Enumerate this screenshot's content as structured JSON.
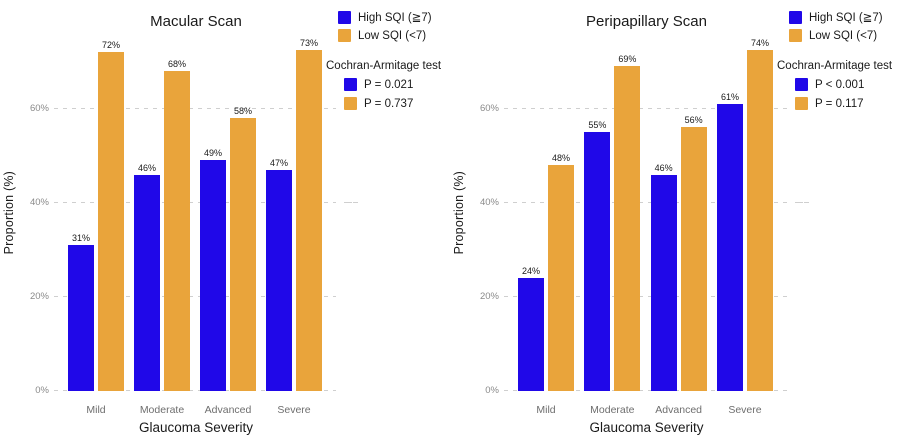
{
  "colors": {
    "high_sqi": "#2008E8",
    "low_sqi": "#E9A43B",
    "grid": "#CFCFCF",
    "y_tick_text": "#8A8A8A",
    "x_tick_text": "#6E6E6E",
    "text": "#1A1A1A"
  },
  "chart_data": [
    {
      "type": "bar",
      "title": "Macular Scan",
      "xlabel": "Glaucoma Severity",
      "ylabel": "Proportion (%)",
      "categories": [
        "Mild",
        "Moderate",
        "Advanced",
        "Severe"
      ],
      "series": [
        {
          "name": "High SQI (≧7)",
          "color": "#2008E8",
          "values": [
            31,
            46,
            49,
            47
          ]
        },
        {
          "name": "Low SQI (<7)",
          "color": "#E9A43B",
          "values": [
            72,
            68,
            58,
            73
          ]
        }
      ],
      "value_label_suffix": "%",
      "ylim": [
        0,
        75
      ],
      "yticks": [
        {
          "value": 0,
          "label": "0%"
        },
        {
          "value": 20,
          "label": "20%"
        },
        {
          "value": 40,
          "label": "40%"
        },
        {
          "value": 60,
          "label": "60%"
        }
      ],
      "grid": "horizontal dashed",
      "legend_position": "top-right",
      "cochran_armitage": {
        "title": "Cochran-Armitage test",
        "p_high": "P = 0.021",
        "p_low": "P = 0.737"
      }
    },
    {
      "type": "bar",
      "title": "Peripapillary Scan",
      "xlabel": "Glaucoma Severity",
      "ylabel": "Proportion (%)",
      "categories": [
        "Mild",
        "Moderate",
        "Advanced",
        "Severe"
      ],
      "series": [
        {
          "name": "High SQI (≧7)",
          "color": "#2008E8",
          "values": [
            24,
            55,
            46,
            61
          ]
        },
        {
          "name": "Low SQI (<7)",
          "color": "#E9A43B",
          "values": [
            48,
            69,
            56,
            74
          ]
        }
      ],
      "value_label_suffix": "%",
      "ylim": [
        0,
        75
      ],
      "yticks": [
        {
          "value": 0,
          "label": "0%"
        },
        {
          "value": 20,
          "label": "20%"
        },
        {
          "value": 40,
          "label": "40%"
        },
        {
          "value": 60,
          "label": "60%"
        }
      ],
      "grid": "horizontal dashed",
      "legend_position": "top-right",
      "cochran_armitage": {
        "title": "Cochran-Armitage test",
        "p_high": "P < 0.001",
        "p_low": "P = 0.117"
      }
    }
  ]
}
